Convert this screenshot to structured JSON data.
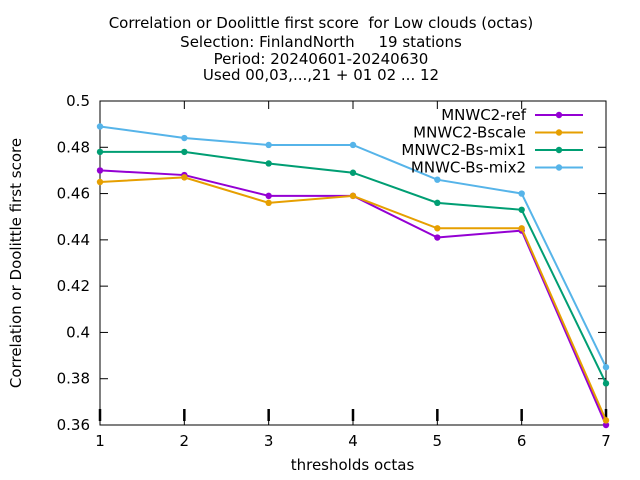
{
  "chart_data": {
    "type": "line",
    "title_lines": [
      "Correlation or Doolittle first score  for Low clouds (octas)",
      "Selection: FinlandNorth     19 stations",
      "Period: 20240601-20240630",
      "Used 00,03,...,21 + 01 02 ... 12"
    ],
    "xlabel": "thresholds octas",
    "ylabel": "Correlation or Doolittle first score",
    "x": [
      1,
      2,
      3,
      4,
      5,
      6,
      7
    ],
    "xlim": [
      1,
      7
    ],
    "ylim": [
      0.36,
      0.5
    ],
    "yticks": [
      "0.36",
      "0.38",
      "0.4",
      "0.42",
      "0.44",
      "0.46",
      "0.48",
      "0.5"
    ],
    "xticks": [
      "1",
      "2",
      "3",
      "4",
      "5",
      "6",
      "7"
    ],
    "grid": false,
    "legend_position": "top-right",
    "series": [
      {
        "name": "MNWC2-ref",
        "color": "#9400d3",
        "values": [
          0.47,
          0.468,
          0.459,
          0.459,
          0.441,
          0.444,
          0.36
        ]
      },
      {
        "name": "MNWC2-Bscale",
        "color": "#e69f00",
        "values": [
          0.465,
          0.467,
          0.456,
          0.459,
          0.445,
          0.445,
          0.362
        ]
      },
      {
        "name": "MNWC2-Bs-mix1",
        "color": "#009e73",
        "values": [
          0.478,
          0.478,
          0.473,
          0.469,
          0.456,
          0.453,
          0.378
        ]
      },
      {
        "name": "MNWC-Bs-mix2",
        "color": "#56b4e9",
        "values": [
          0.489,
          0.484,
          0.481,
          0.481,
          0.466,
          0.46,
          0.385
        ]
      }
    ]
  }
}
